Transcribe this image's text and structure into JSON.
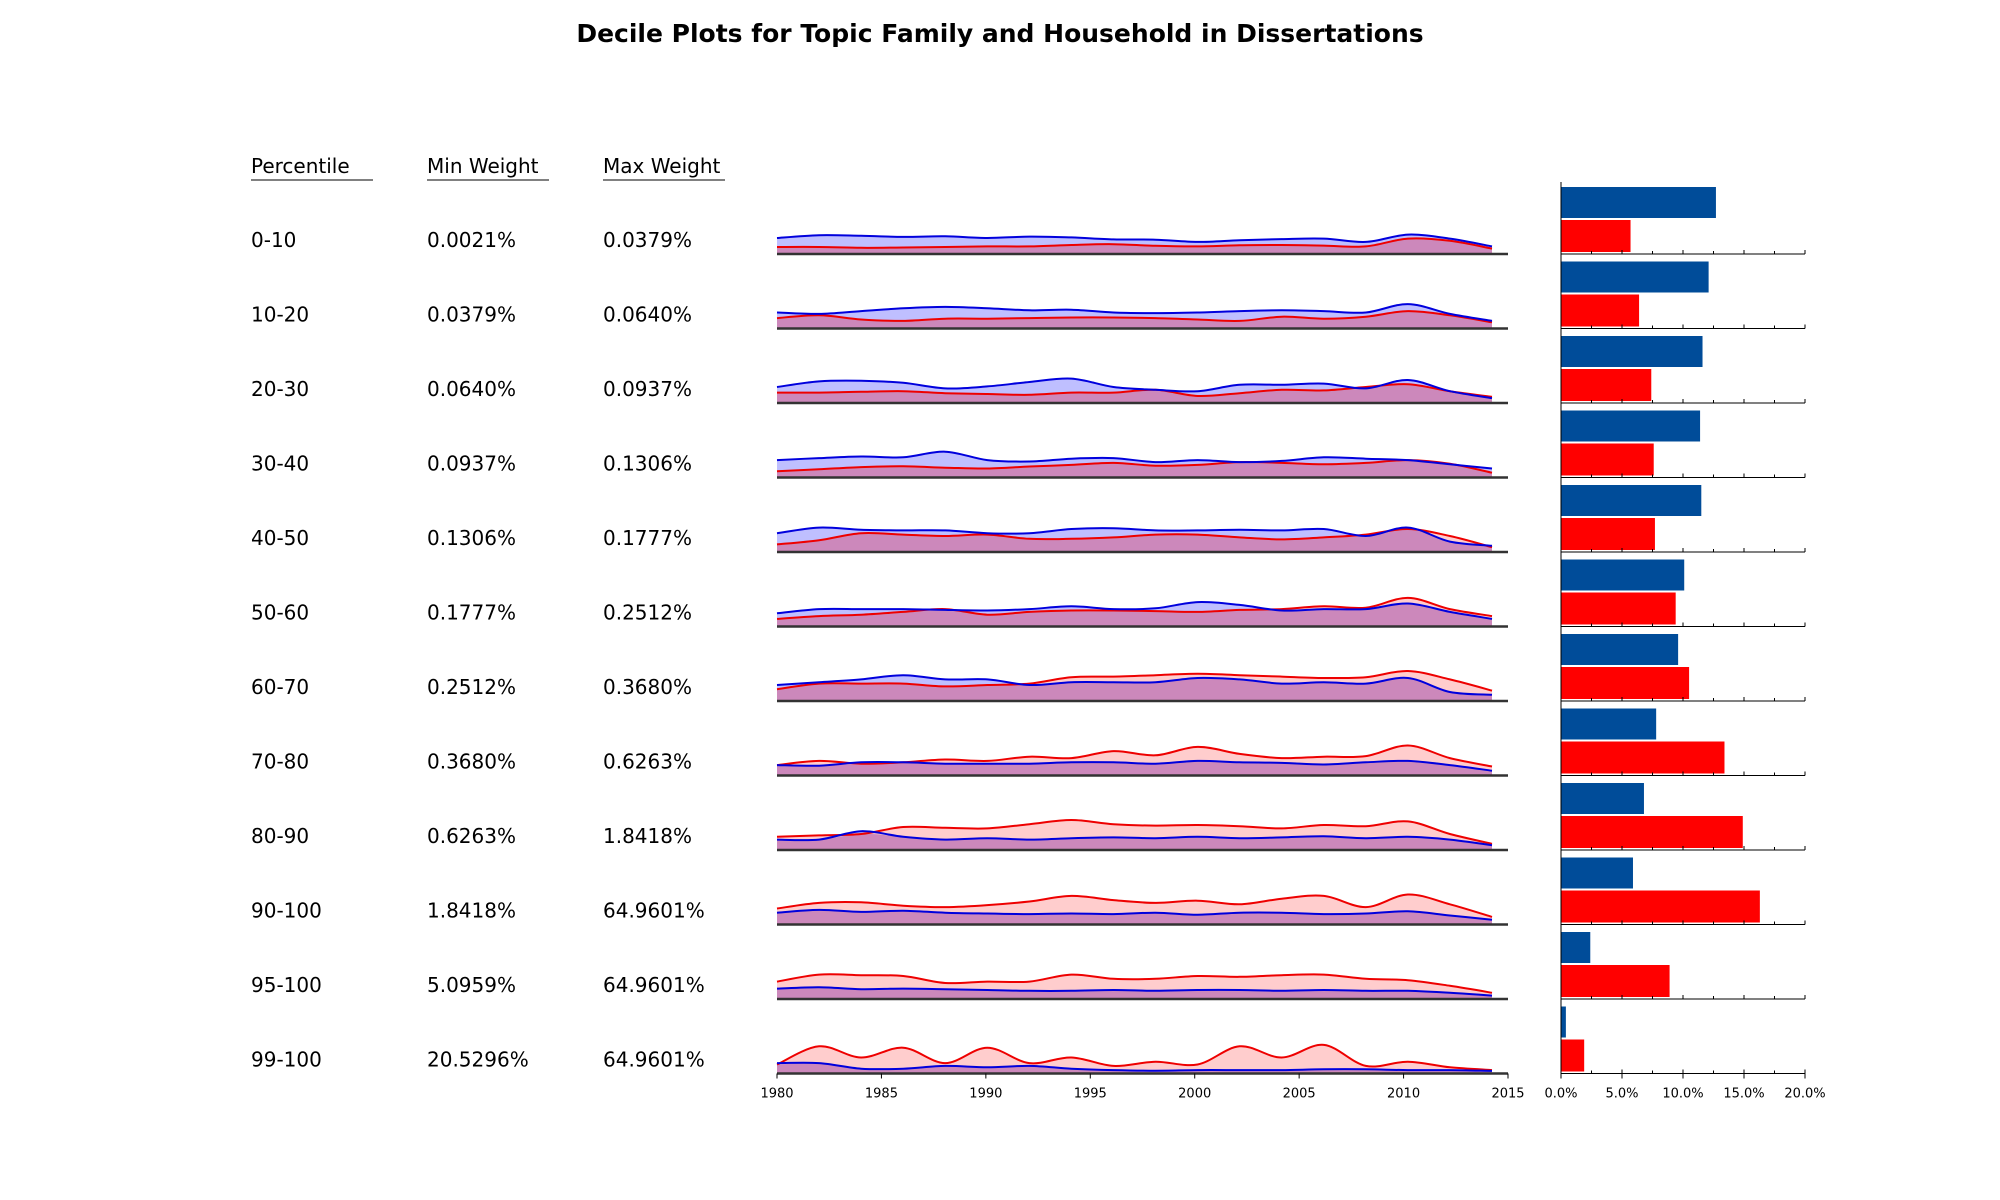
{
  "title": "Decile Plots for Topic Family and Household in Dissertations",
  "table": {
    "headers": [
      "Percentile",
      "Min Weight",
      "Max Weight"
    ],
    "rows": [
      [
        "0-10",
        "0.0021%",
        "0.0379%"
      ],
      [
        "10-20",
        "0.0379%",
        "0.0640%"
      ],
      [
        "20-30",
        "0.0640%",
        "0.0937%"
      ],
      [
        "30-40",
        "0.0937%",
        "0.1306%"
      ],
      [
        "40-50",
        "0.1306%",
        "0.1777%"
      ],
      [
        "50-60",
        "0.1777%",
        "0.2512%"
      ],
      [
        "60-70",
        "0.2512%",
        "0.3680%"
      ],
      [
        "70-80",
        "0.3680%",
        "0.6263%"
      ],
      [
        "80-90",
        "0.6263%",
        "1.8418%"
      ],
      [
        "90-100",
        "1.8418%",
        "64.9601%"
      ],
      [
        "95-100",
        "5.0959%",
        "64.9601%"
      ],
      [
        "99-100",
        "20.5296%",
        "64.9601%"
      ]
    ]
  },
  "colors": {
    "blue_line": "#0000dd",
    "blue_fill": "#b8b8ff",
    "red_line": "#ee0000",
    "red_fill": "#ffbcbc",
    "overlap_fill": "#cc88bb",
    "bar_blue": "#004c99",
    "bar_red": "#ff0000",
    "axis": "#333333"
  },
  "chart_data": [
    {
      "type": "area",
      "x": [
        1980,
        1982,
        1984,
        1986,
        1988,
        1990,
        1992,
        1994,
        1996,
        1998,
        2000,
        2002,
        2004,
        2006,
        2008,
        2010,
        2012,
        2014
      ],
      "xlim": [
        1980,
        2015
      ],
      "x_ticks": [
        "1980",
        "1985",
        "1990",
        "1995",
        "2000",
        "2005",
        "2010",
        "2015"
      ],
      "grid": false,
      "rows": [
        {
          "blue": [
            0.5,
            0.6,
            0.58,
            0.54,
            0.56,
            0.5,
            0.55,
            0.52,
            0.45,
            0.44,
            0.36,
            0.42,
            0.46,
            0.48,
            0.36,
            0.62,
            0.48,
            0.2
          ],
          "red": [
            0.18,
            0.18,
            0.15,
            0.16,
            0.18,
            0.2,
            0.2,
            0.25,
            0.28,
            0.22,
            0.2,
            0.24,
            0.25,
            0.23,
            0.2,
            0.48,
            0.4,
            0.12
          ]
        },
        {
          "blue": [
            0.5,
            0.45,
            0.55,
            0.65,
            0.7,
            0.65,
            0.58,
            0.6,
            0.5,
            0.48,
            0.5,
            0.55,
            0.58,
            0.55,
            0.5,
            0.8,
            0.45,
            0.2
          ],
          "red": [
            0.3,
            0.4,
            0.25,
            0.2,
            0.28,
            0.28,
            0.3,
            0.32,
            0.32,
            0.3,
            0.25,
            0.2,
            0.35,
            0.28,
            0.35,
            0.55,
            0.4,
            0.15
          ]
        },
        {
          "blue": [
            0.5,
            0.7,
            0.72,
            0.65,
            0.45,
            0.52,
            0.68,
            0.8,
            0.5,
            0.4,
            0.35,
            0.58,
            0.58,
            0.62,
            0.45,
            0.75,
            0.35,
            0.1
          ],
          "red": [
            0.3,
            0.3,
            0.33,
            0.35,
            0.28,
            0.25,
            0.22,
            0.3,
            0.3,
            0.4,
            0.18,
            0.28,
            0.4,
            0.38,
            0.5,
            0.6,
            0.35,
            0.15
          ]
        },
        {
          "blue": [
            0.55,
            0.62,
            0.68,
            0.65,
            0.85,
            0.55,
            0.5,
            0.6,
            0.62,
            0.48,
            0.55,
            0.48,
            0.52,
            0.65,
            0.6,
            0.55,
            0.4,
            0.25
          ],
          "red": [
            0.15,
            0.22,
            0.3,
            0.33,
            0.28,
            0.25,
            0.32,
            0.38,
            0.45,
            0.35,
            0.38,
            0.48,
            0.45,
            0.4,
            0.45,
            0.55,
            0.42,
            0.1
          ]
        },
        {
          "blue": [
            0.6,
            0.8,
            0.72,
            0.7,
            0.7,
            0.6,
            0.6,
            0.75,
            0.78,
            0.7,
            0.7,
            0.72,
            0.7,
            0.75,
            0.5,
            0.8,
            0.3,
            0.15
          ],
          "red": [
            0.2,
            0.35,
            0.6,
            0.55,
            0.5,
            0.55,
            0.4,
            0.4,
            0.45,
            0.55,
            0.55,
            0.45,
            0.38,
            0.45,
            0.55,
            0.75,
            0.5,
            0.1
          ]
        },
        {
          "blue": [
            0.4,
            0.55,
            0.55,
            0.55,
            0.52,
            0.5,
            0.55,
            0.65,
            0.55,
            0.58,
            0.8,
            0.7,
            0.5,
            0.55,
            0.55,
            0.75,
            0.45,
            0.2
          ],
          "red": [
            0.2,
            0.3,
            0.35,
            0.45,
            0.55,
            0.35,
            0.45,
            0.5,
            0.5,
            0.48,
            0.45,
            0.52,
            0.55,
            0.65,
            0.6,
            0.95,
            0.55,
            0.3
          ]
        },
        {
          "blue": [
            0.5,
            0.6,
            0.7,
            0.85,
            0.7,
            0.7,
            0.5,
            0.6,
            0.6,
            0.6,
            0.75,
            0.7,
            0.55,
            0.6,
            0.55,
            0.75,
            0.25,
            0.15
          ],
          "red": [
            0.35,
            0.55,
            0.55,
            0.55,
            0.45,
            0.5,
            0.55,
            0.78,
            0.8,
            0.85,
            0.9,
            0.85,
            0.8,
            0.75,
            0.78,
            1.0,
            0.7,
            0.3
          ]
        },
        {
          "blue": [
            0.3,
            0.28,
            0.4,
            0.4,
            0.35,
            0.35,
            0.35,
            0.4,
            0.4,
            0.35,
            0.45,
            0.4,
            0.38,
            0.32,
            0.4,
            0.45,
            0.3,
            0.1
          ]
        },
        {
          "blue": [
            0.3,
            0.3,
            0.6,
            0.4,
            0.3,
            0.35,
            0.3,
            0.35,
            0.38,
            0.35,
            0.4,
            0.35,
            0.38,
            0.42,
            0.35,
            0.4,
            0.3,
            0.1
          ]
        },
        {
          "blue": [
            0.35,
            0.45,
            0.38,
            0.42,
            0.35,
            0.32,
            0.3,
            0.32,
            0.3,
            0.35,
            0.28,
            0.35,
            0.35,
            0.3,
            0.32,
            0.4,
            0.25,
            0.1
          ]
        },
        {
          "blue": [
            0.3,
            0.35,
            0.28,
            0.3,
            0.28,
            0.25,
            0.22,
            0.22,
            0.25,
            0.22,
            0.25,
            0.25,
            0.22,
            0.25,
            0.22,
            0.22,
            0.15,
            0.05
          ]
        },
        {
          "blue": [
            0.3,
            0.3,
            0.1,
            0.1,
            0.2,
            0.15,
            0.2,
            0.1,
            0.05,
            0.03,
            0.05,
            0.05,
            0.05,
            0.08,
            0.08,
            0.05,
            0.05,
            0.02
          ]
        }
      ]
    },
    {
      "type": "bar",
      "orientation": "horizontal",
      "xlim": [
        0,
        20
      ],
      "x_ticks": [
        "0.0%",
        "5.0%",
        "10.0%",
        "15.0%",
        "20.0%"
      ],
      "blue_values": [
        12.7,
        12.1,
        11.6,
        11.4,
        11.5,
        10.1,
        9.6,
        7.8,
        6.8,
        5.9,
        2.4,
        0.4
      ],
      "red_values": [
        5.7,
        6.4,
        7.4,
        7.6,
        7.7,
        9.4,
        10.5,
        13.4,
        14.9,
        16.3,
        8.9,
        1.9
      ]
    }
  ]
}
